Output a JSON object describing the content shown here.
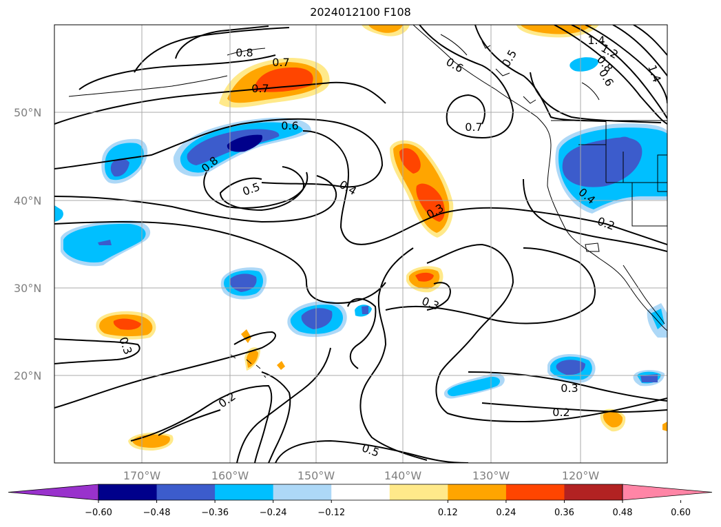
{
  "title": "2024012100 F108",
  "latitude_labels": [
    "50°N",
    "40°N",
    "30°N",
    "20°N"
  ],
  "longitude_labels": [
    "170°W",
    "160°W",
    "150°W",
    "140°W",
    "130°W",
    "120°W"
  ],
  "contour_labels": [
    "0.8",
    "0.7",
    "0.6",
    "0.5",
    "0.7",
    "1.4",
    "1.2",
    "0.8",
    "0.6",
    "1.4",
    "0.6",
    "0.7",
    "0.8",
    "0.5",
    "0.4",
    "0.3",
    "0.4",
    "0.2",
    "0.3",
    "0.3",
    "0.2",
    "0.5",
    "0.3",
    "0.2"
  ],
  "colorbar": {
    "ticks": [
      "−0.60",
      "−0.48",
      "−0.36",
      "−0.24",
      "−0.12",
      "0.12",
      "0.24",
      "0.36",
      "0.48",
      "0.60"
    ],
    "colors": [
      "#9932cc",
      "#00008b",
      "#3c5ccc",
      "#00bfff",
      "#add8f7",
      "#ffffff",
      "#ffe98a",
      "#ffa500",
      "#ff4500",
      "#b22222",
      "#ff85a6"
    ]
  },
  "icons": [
    "contour-line",
    "coastline",
    "anomaly-shading"
  ]
}
